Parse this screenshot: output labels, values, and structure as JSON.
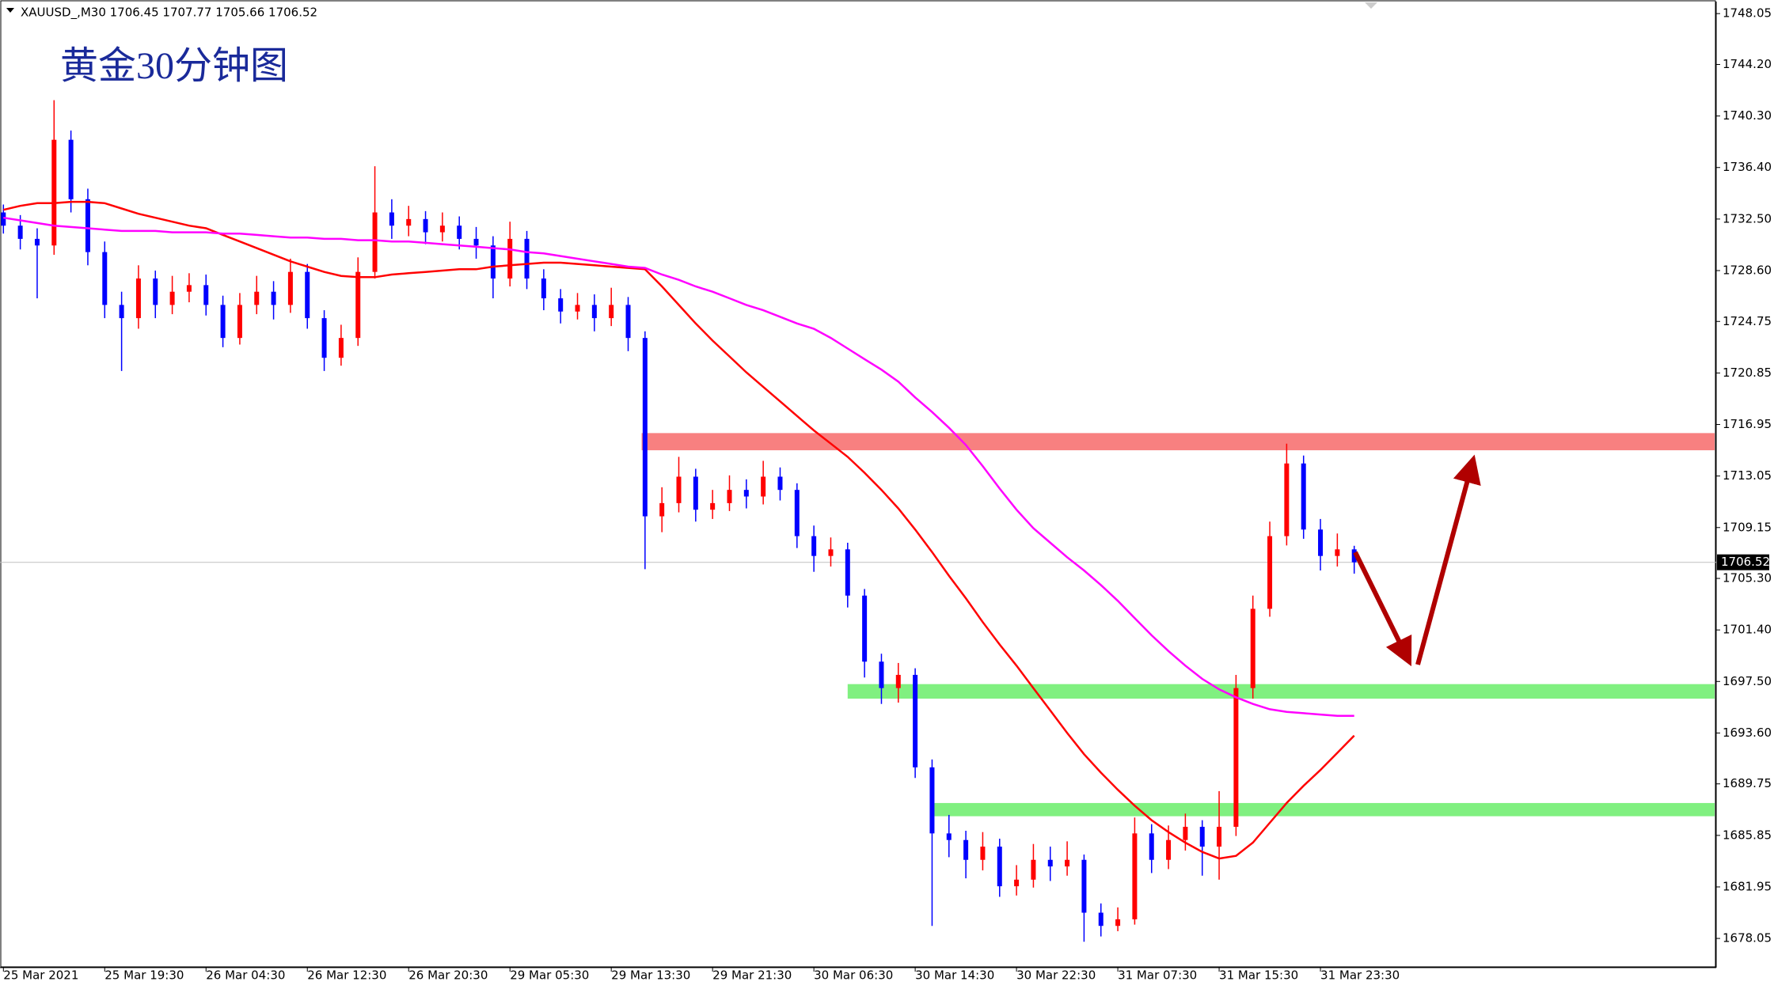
{
  "chart_data": {
    "type": "candlestick",
    "header": "XAUUSD_,M30  1706.45 1707.77 1705.66 1706.52",
    "title": "黄金30分钟图",
    "up_color": "#ff0000",
    "down_color": "#0000ff",
    "ylim": [
      1675.9,
      1748.9
    ],
    "yticks": [
      1748.05,
      {
        "value": 1744.2,
        "label": "1744.20"
      },
      {
        "value": 1740.3,
        "label": "1740.30"
      },
      {
        "value": 1736.4,
        "label": "1736.40"
      },
      {
        "value": 1732.5,
        "label": "1732.50"
      },
      {
        "value": 1728.6,
        "label": "1728.60"
      },
      1724.75,
      1720.85,
      1716.95,
      1713.05,
      1709.15,
      {
        "value": 1705.3,
        "label": "1705.30"
      },
      {
        "value": 1701.4,
        "label": "1701.40"
      },
      {
        "value": 1697.5,
        "label": "1697.50"
      },
      {
        "value": 1693.6,
        "label": "1693.60"
      },
      1689.75,
      1685.85,
      1681.95,
      1678.05
    ],
    "last_price": 1706.52,
    "categories": [
      "25 Mar 2021",
      null,
      null,
      null,
      null,
      null,
      "25 Mar 19:30",
      null,
      null,
      null,
      null,
      null,
      "26 Mar 04:30",
      null,
      null,
      null,
      null,
      null,
      "26 Mar 12:30",
      null,
      null,
      null,
      null,
      null,
      "26 Mar 20:30",
      null,
      null,
      null,
      null,
      null,
      "29 Mar 05:30",
      null,
      null,
      null,
      null,
      null,
      "29 Mar 13:30",
      null,
      null,
      null,
      null,
      null,
      "29 Mar 21:30",
      null,
      null,
      null,
      null,
      null,
      "30 Mar 06:30",
      null,
      null,
      null,
      null,
      null,
      "30 Mar 14:30",
      null,
      null,
      null,
      null,
      null,
      "30 Mar 22:30",
      null,
      null,
      null,
      null,
      null,
      "31 Mar 07:30",
      null,
      null,
      null,
      null,
      null,
      "31 Mar 15:30",
      null,
      null,
      null,
      null,
      null,
      "31 Mar 23:30",
      null,
      null
    ],
    "open": [
      1733,
      1732,
      1731,
      1730.5,
      1738.5,
      1734,
      1730,
      1726,
      1725,
      1728,
      1726,
      1727,
      1727.5,
      1726,
      1723.5,
      1726,
      1727,
      1726,
      1728.5,
      1725,
      1722,
      1723.5,
      1728.5,
      1733,
      1732,
      1732.5,
      1731.5,
      1732,
      1731,
      1730.5,
      1728,
      1731,
      1728,
      1726.5,
      1725.5,
      1726,
      1725,
      1726,
      1723.5,
      1710,
      1711,
      1713,
      1710.5,
      1711,
      1712,
      1711.5,
      1713,
      1712,
      1708.5,
      1707,
      1707.5,
      1704,
      1699,
      1697,
      1698,
      1691,
      1686,
      1685.5,
      1684,
      1685,
      1682,
      1682.5,
      1684,
      1683.5,
      1684,
      1680,
      1679,
      1679.5,
      1686,
      1684,
      1685.5,
      1686.5,
      1685,
      1686.5,
      1697,
      1703,
      1708.5,
      1714,
      1709,
      1707,
      1707.5
    ],
    "high": [
      1733.6,
      1732.8,
      1731.8,
      1741.5,
      1739.2,
      1734.8,
      1730.8,
      1727,
      1729,
      1728.6,
      1728.2,
      1728.4,
      1728.3,
      1726.7,
      1726.9,
      1728.2,
      1727.8,
      1729.5,
      1729.1,
      1725.6,
      1724.5,
      1729.6,
      1736.5,
      1734,
      1733.5,
      1733.1,
      1733,
      1732.7,
      1731.9,
      1731.2,
      1732.3,
      1731.6,
      1728.7,
      1727.2,
      1726.9,
      1726.8,
      1727.3,
      1726.6,
      1724,
      1712.2,
      1714.5,
      1713.6,
      1712,
      1713.1,
      1712.8,
      1714.2,
      1713.7,
      1712.5,
      1709.3,
      1708.4,
      1708,
      1704.5,
      1699.6,
      1698.9,
      1698.5,
      1691.6,
      1687.4,
      1686.2,
      1686.1,
      1685.6,
      1683.6,
      1685.2,
      1685,
      1685.4,
      1684.4,
      1680.7,
      1680.4,
      1687.2,
      1686.7,
      1686.6,
      1687.5,
      1687,
      1689.2,
      1698,
      1704,
      1709.6,
      1715.5,
      1714.6,
      1709.8,
      1708.7,
      1707.77
    ],
    "low": [
      1731.4,
      1730.2,
      1726.5,
      1729.8,
      1733,
      1729,
      1725,
      1721,
      1724.2,
      1725,
      1725.3,
      1726.2,
      1725.2,
      1722.8,
      1723,
      1725.3,
      1724.9,
      1725.4,
      1724.2,
      1721,
      1721.4,
      1722.9,
      1728,
      1731,
      1731.2,
      1730.6,
      1730.8,
      1730.2,
      1729.5,
      1726.5,
      1727.4,
      1727.2,
      1725.6,
      1724.6,
      1724.9,
      1724,
      1724.4,
      1722.5,
      1706,
      1708.8,
      1710.3,
      1709.6,
      1709.8,
      1710.4,
      1710.6,
      1710.9,
      1711.2,
      1707.6,
      1705.8,
      1706.2,
      1703.1,
      1697.8,
      1695.8,
      1695.9,
      1690.2,
      1679,
      1684.2,
      1682.6,
      1683.2,
      1681.2,
      1681.3,
      1681.9,
      1682.4,
      1682.8,
      1677.8,
      1678.2,
      1678.6,
      1679.1,
      1683,
      1683.3,
      1684.7,
      1682.8,
      1682.5,
      1685.8,
      1696.2,
      1702.4,
      1707.8,
      1708.3,
      1705.9,
      1706.2,
      1705.66
    ],
    "close": [
      1732,
      1731,
      1730.5,
      1738.5,
      1734,
      1730,
      1726,
      1725,
      1728,
      1726,
      1727,
      1727.5,
      1726,
      1723.5,
      1726,
      1727,
      1726,
      1728.5,
      1725,
      1722,
      1723.5,
      1728.5,
      1733,
      1732,
      1732.5,
      1731.5,
      1732,
      1731,
      1730.5,
      1728,
      1731,
      1728,
      1726.5,
      1725.5,
      1726,
      1725,
      1726,
      1723.5,
      1710,
      1711,
      1713,
      1710.5,
      1711,
      1712,
      1711.5,
      1713,
      1712,
      1708.5,
      1707,
      1707.5,
      1704,
      1699,
      1697,
      1698,
      1691,
      1686,
      1685.5,
      1684,
      1685,
      1682,
      1682.5,
      1684,
      1683.5,
      1684,
      1680,
      1679,
      1679.5,
      1686,
      1684,
      1685.5,
      1686.5,
      1685,
      1686.5,
      1697,
      1703,
      1708.5,
      1714,
      1709,
      1707,
      1707.5,
      1706.52
    ],
    "lines": [
      {
        "color": "#ff0000",
        "values": [
          1733.2,
          1733.5,
          1733.7,
          1733.7,
          1733.8,
          1733.8,
          1733.7,
          1733.3,
          1732.9,
          1732.6,
          1732.3,
          1732.0,
          1731.8,
          1731.3,
          1730.8,
          1730.3,
          1729.8,
          1729.3,
          1728.9,
          1728.5,
          1728.2,
          1728.1,
          1728.1,
          1728.3,
          1728.4,
          1728.5,
          1728.6,
          1728.7,
          1728.7,
          1728.9,
          1729.0,
          1729.1,
          1729.2,
          1729.2,
          1729.1,
          1729.0,
          1728.9,
          1728.8,
          1728.7,
          1727.4,
          1726.0,
          1724.6,
          1723.3,
          1722.1,
          1720.9,
          1719.8,
          1718.7,
          1717.6,
          1716.5,
          1715.5,
          1714.5,
          1713.3,
          1712.0,
          1710.6,
          1709.0,
          1707.3,
          1705.5,
          1703.8,
          1702.0,
          1700.3,
          1698.7,
          1697.0,
          1695.3,
          1693.6,
          1692.0,
          1690.6,
          1689.3,
          1688.1,
          1687.0,
          1686.1,
          1685.3,
          1684.6,
          1684.1,
          1684.3,
          1685.3,
          1686.8,
          1688.3,
          1689.6,
          1690.8,
          1692.1,
          1693.4
        ]
      },
      {
        "color": "#ff00ff",
        "values": [
          1732.6,
          1732.4,
          1732.2,
          1732.0,
          1731.9,
          1731.8,
          1731.7,
          1731.6,
          1731.6,
          1731.6,
          1731.5,
          1731.5,
          1731.5,
          1731.4,
          1731.4,
          1731.3,
          1731.2,
          1731.1,
          1731.1,
          1731.0,
          1731.0,
          1730.9,
          1730.9,
          1730.8,
          1730.8,
          1730.7,
          1730.6,
          1730.5,
          1730.4,
          1730.3,
          1730.2,
          1730.0,
          1729.9,
          1729.7,
          1729.5,
          1729.3,
          1729.1,
          1728.9,
          1728.8,
          1728.3,
          1727.9,
          1727.4,
          1727.0,
          1726.5,
          1726.0,
          1725.6,
          1725.1,
          1724.6,
          1724.2,
          1723.5,
          1722.7,
          1721.9,
          1721.1,
          1720.2,
          1719.0,
          1717.9,
          1716.7,
          1715.4,
          1713.8,
          1712.1,
          1710.5,
          1709.1,
          1708.0,
          1706.9,
          1705.9,
          1704.8,
          1703.6,
          1702.3,
          1701.0,
          1699.8,
          1698.7,
          1697.7,
          1696.9,
          1696.3,
          1695.8,
          1695.4,
          1695.2,
          1695.1,
          1695.0,
          1694.9,
          1694.9
        ]
      }
    ],
    "zones": [
      {
        "color": "#f88080",
        "low": 1715.0,
        "high": 1716.3
      },
      {
        "color": "#80f080",
        "low": 1696.2,
        "high": 1697.3
      },
      {
        "color": "#80f080",
        "low": 1687.3,
        "high": 1688.3
      }
    ]
  }
}
